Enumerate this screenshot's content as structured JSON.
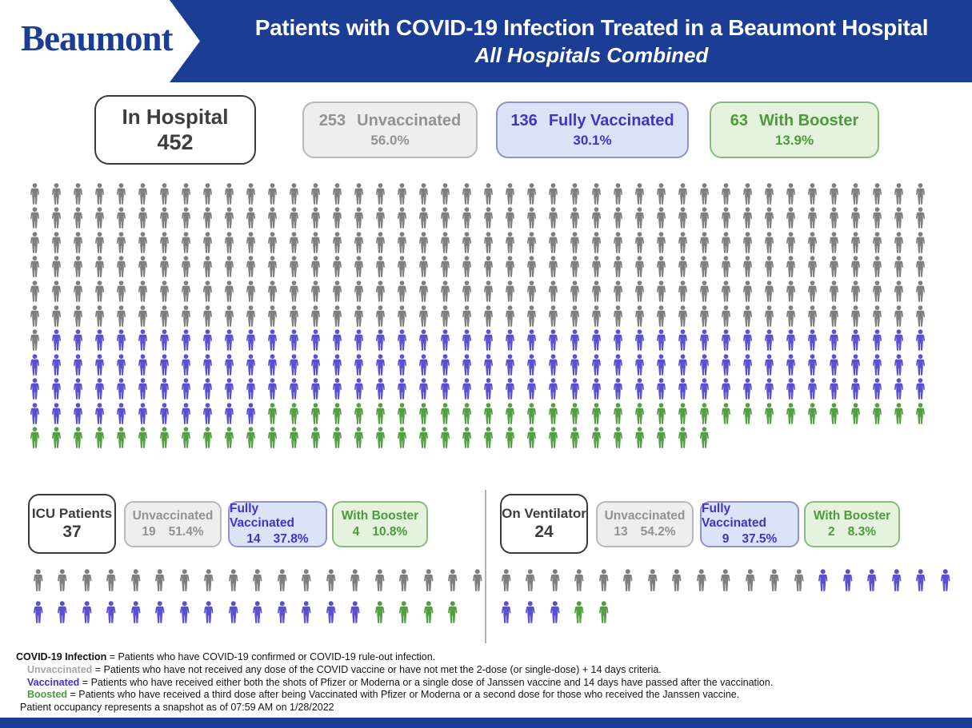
{
  "header": {
    "logo": "Beaumont",
    "title": "Patients with COVID-19 Infection Treated in a Beaumont Hospital",
    "subtitle": "All Hospitals Combined"
  },
  "colors": {
    "brand_blue": "#1b3e94",
    "icon_unvaccinated": "#7f7f7f",
    "icon_vaccinated": "#5a50d2",
    "icon_boosted": "#52a043",
    "box_gray_bg": "#eeeeee",
    "box_blue_bg": "#dbe3f7",
    "box_green_bg": "#e4f2de",
    "text_gray": "#929292",
    "text_blue": "#4431c7",
    "text_green": "#4c9b3a"
  },
  "summary": {
    "total_label": "In Hospital",
    "total_value": "452",
    "boxes": [
      {
        "count": "253",
        "label": "Unvaccinated",
        "pct": "56.0%"
      },
      {
        "count": "136",
        "label": "Fully Vaccinated",
        "pct": "30.1%"
      },
      {
        "count": "63",
        "label": "With Booster",
        "pct": "13.9%"
      }
    ]
  },
  "icu": {
    "total_label": "ICU Patients",
    "total_value": "37",
    "boxes": [
      {
        "label": "Unvaccinated",
        "count": "19",
        "pct": "51.4%"
      },
      {
        "label": "Fully Vaccinated",
        "count": "14",
        "pct": "37.8%"
      },
      {
        "label": "With Booster",
        "count": "4",
        "pct": "10.8%"
      }
    ]
  },
  "ventilator": {
    "total_label": "On Ventilator",
    "total_value": "24",
    "boxes": [
      {
        "label": "Unvaccinated",
        "count": "13",
        "pct": "54.2%"
      },
      {
        "label": "Fully Vaccinated",
        "count": "9",
        "pct": "37.5%"
      },
      {
        "label": "With Booster",
        "count": "2",
        "pct": "8.3%"
      }
    ]
  },
  "chart_data": [
    {
      "type": "pictogram",
      "title": "In Hospital",
      "total": 452,
      "columns": 42,
      "unit": "1 icon = 1 patient",
      "series": [
        {
          "name": "Unvaccinated",
          "value": 253,
          "pct": 56.0,
          "color": "#7f7f7f"
        },
        {
          "name": "Fully Vaccinated",
          "value": 136,
          "pct": 30.1,
          "color": "#5a50d2"
        },
        {
          "name": "With Booster",
          "value": 63,
          "pct": 13.9,
          "color": "#52a043"
        }
      ]
    },
    {
      "type": "pictogram",
      "title": "ICU Patients",
      "total": 37,
      "columns": 19,
      "unit": "1 icon = 1 patient",
      "series": [
        {
          "name": "Unvaccinated",
          "value": 19,
          "pct": 51.4,
          "color": "#7f7f7f"
        },
        {
          "name": "Fully Vaccinated",
          "value": 14,
          "pct": 37.8,
          "color": "#5a50d2"
        },
        {
          "name": "With Booster",
          "value": 4,
          "pct": 10.8,
          "color": "#52a043"
        }
      ]
    },
    {
      "type": "pictogram",
      "title": "On Ventilator",
      "total": 24,
      "columns": 19,
      "unit": "1 icon = 1 patient",
      "series": [
        {
          "name": "Unvaccinated",
          "value": 13,
          "pct": 54.2,
          "color": "#7f7f7f"
        },
        {
          "name": "Fully Vaccinated",
          "value": 9,
          "pct": 37.5,
          "color": "#5a50d2"
        },
        {
          "name": "With Booster",
          "value": 2,
          "pct": 8.3,
          "color": "#52a043"
        }
      ]
    }
  ],
  "footnotes": [
    {
      "term": "COVID-19 Infection",
      "style": "black",
      "rest": " = Patients who have COVID-19 confirmed or COVID-19 rule-out infection.",
      "indent": false
    },
    {
      "term": "Unvaccinated",
      "style": "gray",
      "rest": " = Patients who have not received any dose of the COVID vaccine or have not met the 2-dose (or single-dose) + 14 days criteria.",
      "indent": true
    },
    {
      "term": "Vaccinated",
      "style": "blue",
      "rest": " = Patients who have received either both the shots of Pfizer or Moderna or a single dose of Janssen vaccine and 14 days have passed after the vaccination.",
      "indent": true
    },
    {
      "term": "Boosted",
      "style": "green",
      "rest": " = Patients who have received a third dose after being Vaccinated with Pfizer or Moderna or a second dose for those who received the Janssen vaccine.",
      "indent": true
    },
    {
      "term": "",
      "style": "black",
      "rest": "Patient occupancy represents a snapshot as of 07:59 AM on 1/28/2022",
      "indent": false
    }
  ]
}
